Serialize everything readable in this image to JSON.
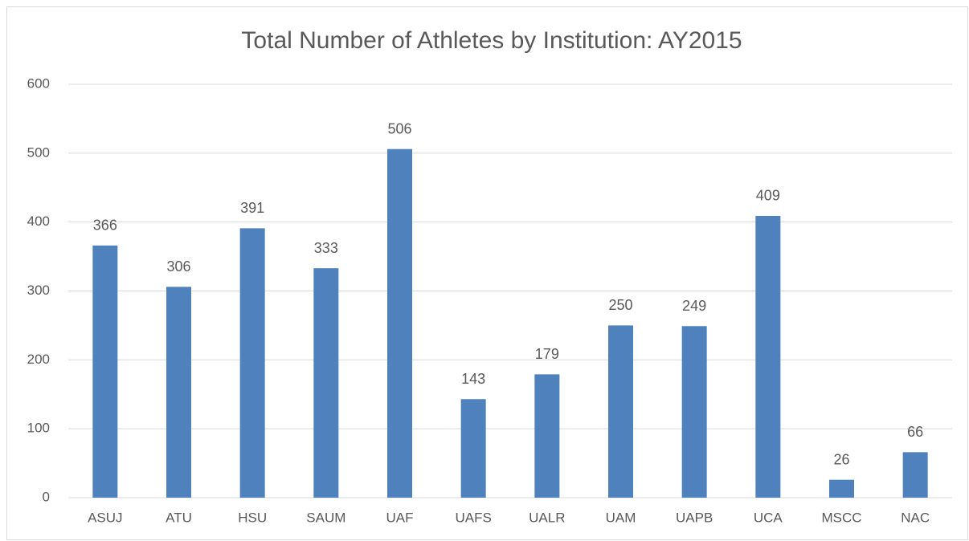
{
  "chart_data": {
    "type": "bar",
    "title": "Total Number of Athletes by Institution: AY2015",
    "categories": [
      "ASUJ",
      "ATU",
      "HSU",
      "SAUM",
      "UAF",
      "UAFS",
      "UALR",
      "UAM",
      "UAPB",
      "UCA",
      "MSCC",
      "NAC"
    ],
    "values": [
      366,
      306,
      391,
      333,
      506,
      143,
      179,
      250,
      249,
      409,
      26,
      66
    ],
    "color": "#4f81bd",
    "ylim": [
      0,
      600
    ],
    "yticks": [
      0,
      100,
      200,
      300,
      400,
      500,
      600
    ],
    "grid": true
  }
}
